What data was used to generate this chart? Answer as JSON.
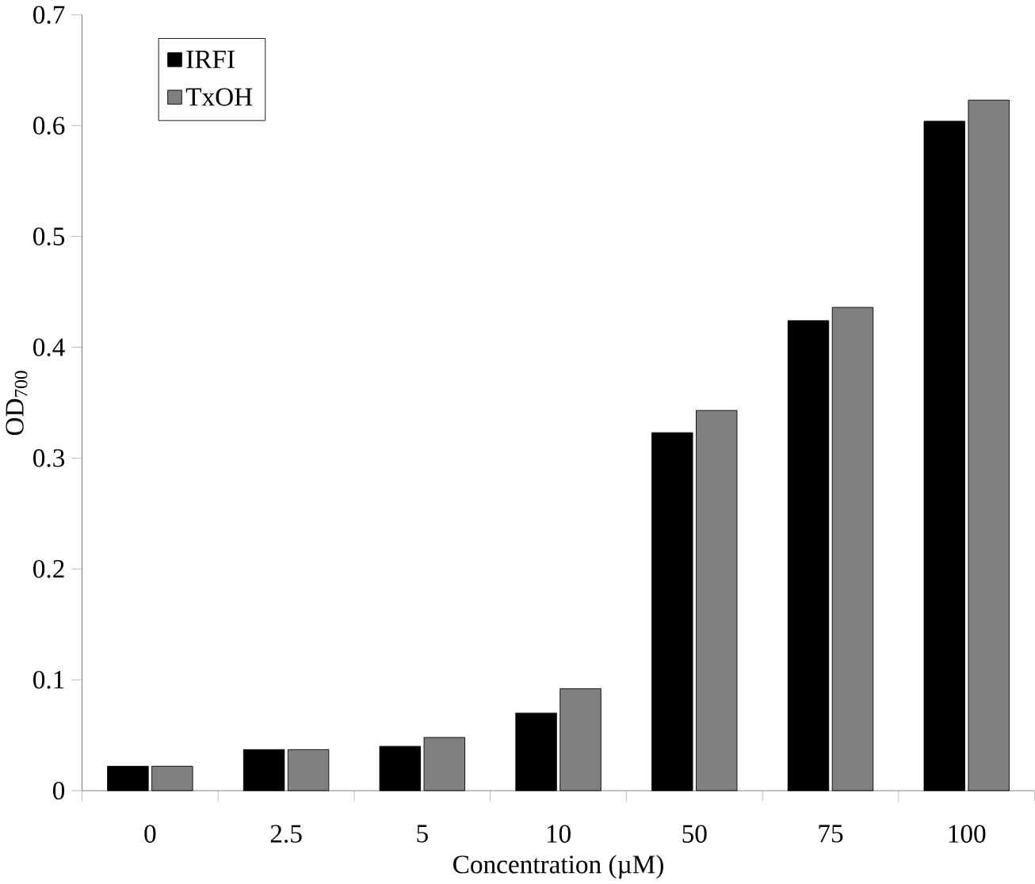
{
  "chart_data": {
    "type": "bar",
    "xlabel": "Concentration (µM)",
    "ylabel": "OD$_{700}$",
    "categories": [
      "0",
      "2.5",
      "5",
      "10",
      "50",
      "75",
      "100"
    ],
    "series": [
      {
        "name": "IRFI",
        "color": "#000000",
        "values": [
          0.022,
          0.037,
          0.04,
          0.07,
          0.323,
          0.424,
          0.604
        ]
      },
      {
        "name": "TxOH",
        "color": "#808080",
        "values": [
          0.022,
          0.037,
          0.048,
          0.092,
          0.343,
          0.436,
          0.623
        ]
      }
    ],
    "ylim": [
      0,
      0.7
    ],
    "yticks": [
      0,
      0.1,
      0.2,
      0.3,
      0.4,
      0.5,
      0.6,
      0.7
    ],
    "legend": "top left"
  }
}
